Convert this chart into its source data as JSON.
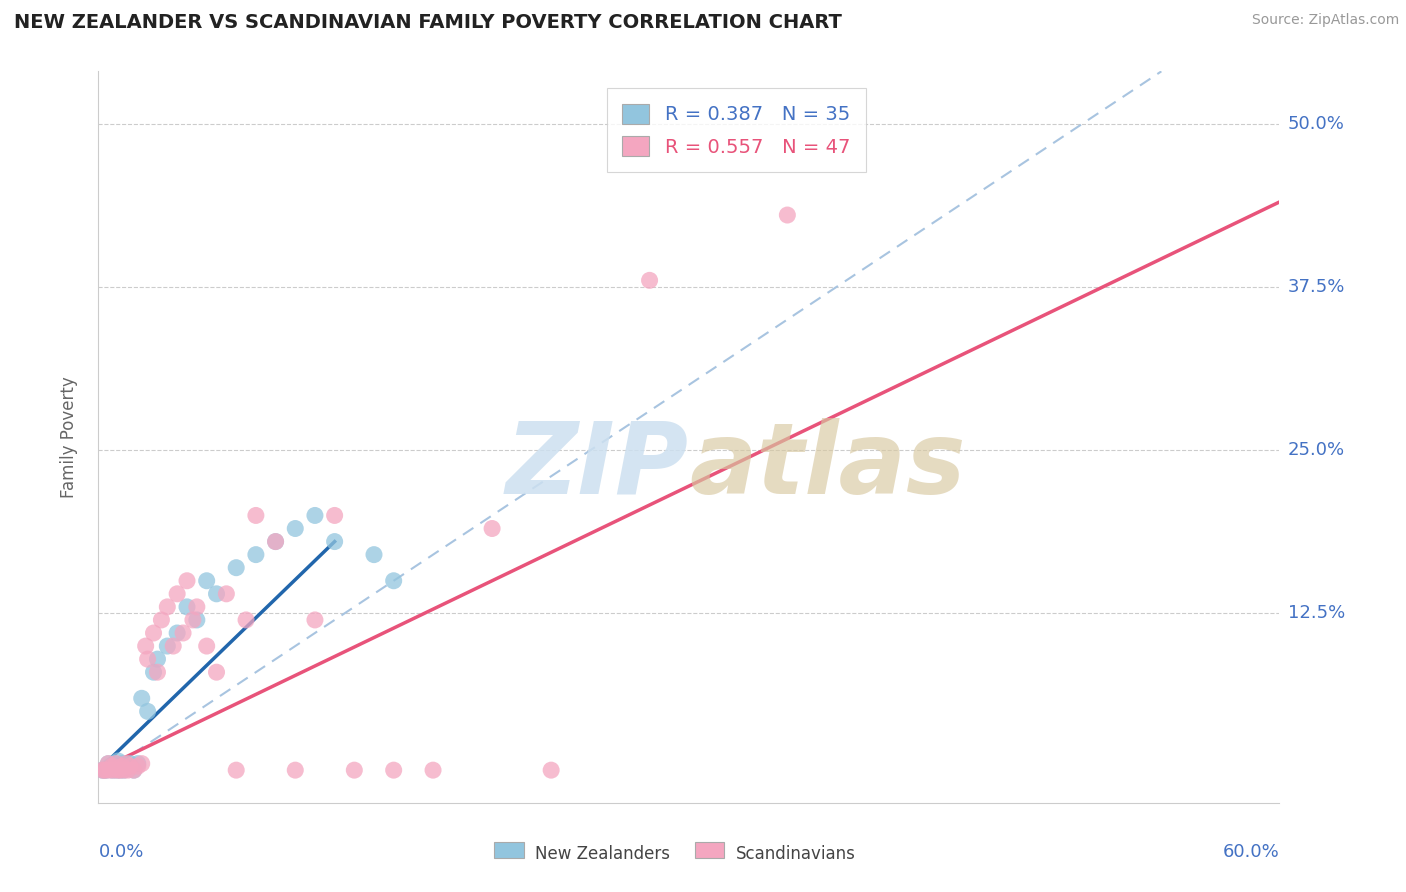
{
  "title": "NEW ZEALANDER VS SCANDINAVIAN FAMILY POVERTY CORRELATION CHART",
  "source": "Source: ZipAtlas.com",
  "ylabel": "Family Poverty",
  "ytick_labels": [
    "12.5%",
    "25.0%",
    "37.5%",
    "50.0%"
  ],
  "ytick_values": [
    0.125,
    0.25,
    0.375,
    0.5
  ],
  "xmin": 0.0,
  "xmax": 0.6,
  "ymin": -0.02,
  "ymax": 0.54,
  "r_nz": 0.387,
  "n_nz": 35,
  "r_sc": 0.557,
  "n_sc": 47,
  "nz_color": "#92c5de",
  "sc_color": "#f4a6c0",
  "nz_line_color": "#2166ac",
  "sc_line_color": "#e8537a",
  "diag_line_color": "#a8c4e0",
  "watermark_color": "#cde0f0",
  "legend_label_nz": "New Zealanders",
  "legend_label_sc": "Scandinavians",
  "nz_x": [
    0.002,
    0.003,
    0.004,
    0.005,
    0.006,
    0.007,
    0.008,
    0.009,
    0.01,
    0.01,
    0.011,
    0.012,
    0.013,
    0.015,
    0.016,
    0.018,
    0.02,
    0.022,
    0.025,
    0.028,
    0.03,
    0.035,
    0.04,
    0.045,
    0.05,
    0.055,
    0.06,
    0.07,
    0.08,
    0.09,
    0.1,
    0.11,
    0.12,
    0.14,
    0.15
  ],
  "nz_y": [
    0.005,
    0.005,
    0.005,
    0.01,
    0.008,
    0.005,
    0.01,
    0.005,
    0.008,
    0.012,
    0.005,
    0.01,
    0.005,
    0.008,
    0.01,
    0.005,
    0.01,
    0.06,
    0.05,
    0.08,
    0.09,
    0.1,
    0.11,
    0.13,
    0.12,
    0.15,
    0.14,
    0.16,
    0.17,
    0.18,
    0.19,
    0.2,
    0.18,
    0.17,
    0.15
  ],
  "sc_x": [
    0.002,
    0.003,
    0.004,
    0.005,
    0.006,
    0.007,
    0.008,
    0.009,
    0.01,
    0.011,
    0.012,
    0.013,
    0.014,
    0.015,
    0.016,
    0.018,
    0.02,
    0.022,
    0.024,
    0.025,
    0.028,
    0.03,
    0.032,
    0.035,
    0.038,
    0.04,
    0.043,
    0.045,
    0.048,
    0.05,
    0.055,
    0.06,
    0.065,
    0.07,
    0.075,
    0.08,
    0.09,
    0.1,
    0.11,
    0.12,
    0.13,
    0.15,
    0.17,
    0.2,
    0.23,
    0.28,
    0.35
  ],
  "sc_y": [
    0.005,
    0.005,
    0.005,
    0.01,
    0.005,
    0.008,
    0.005,
    0.01,
    0.005,
    0.005,
    0.008,
    0.005,
    0.01,
    0.005,
    0.008,
    0.005,
    0.008,
    0.01,
    0.1,
    0.09,
    0.11,
    0.08,
    0.12,
    0.13,
    0.1,
    0.14,
    0.11,
    0.15,
    0.12,
    0.13,
    0.1,
    0.08,
    0.14,
    0.005,
    0.12,
    0.2,
    0.18,
    0.005,
    0.12,
    0.2,
    0.005,
    0.005,
    0.005,
    0.19,
    0.005,
    0.38,
    0.43
  ],
  "nz_line_x": [
    0.0,
    0.12
  ],
  "nz_line_y": [
    0.005,
    0.18
  ],
  "sc_line_x": [
    0.0,
    0.6
  ],
  "sc_line_y": [
    0.005,
    0.44
  ],
  "diag_line_x": [
    0.0,
    0.54
  ],
  "diag_line_y": [
    0.0,
    0.54
  ]
}
